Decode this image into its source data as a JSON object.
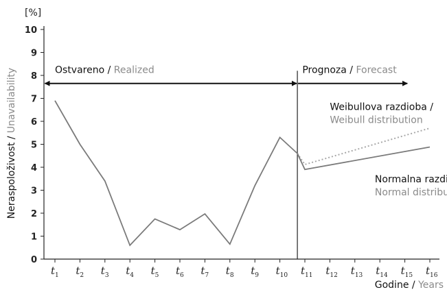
{
  "chart_data": {
    "type": "line",
    "y_unit_label": "[%]",
    "ylabel": {
      "primary": "Neraspoloživost",
      "sep": " / ",
      "secondary": "Unavailability"
    },
    "xlabel": {
      "primary": "Godine",
      "sep": " / ",
      "secondary": "Years"
    },
    "ylim": [
      0,
      10
    ],
    "y_ticks": [
      0,
      1,
      2,
      3,
      4,
      5,
      6,
      7,
      8,
      9,
      10
    ],
    "categories": [
      {
        "base": "t",
        "sub": "1"
      },
      {
        "base": "t",
        "sub": "2"
      },
      {
        "base": "t",
        "sub": "3"
      },
      {
        "base": "t",
        "sub": "4"
      },
      {
        "base": "t",
        "sub": "5"
      },
      {
        "base": "t",
        "sub": "6"
      },
      {
        "base": "t",
        "sub": "7"
      },
      {
        "base": "t",
        "sub": "8"
      },
      {
        "base": "t",
        "sub": "9"
      },
      {
        "base": "t",
        "sub": "10"
      },
      {
        "base": "t",
        "sub": "11"
      },
      {
        "base": "t",
        "sub": "12"
      },
      {
        "base": "t",
        "sub": "13"
      },
      {
        "base": "t",
        "sub": "14"
      },
      {
        "base": "t",
        "sub": "15"
      },
      {
        "base": "t",
        "sub": "16"
      }
    ],
    "series": [
      {
        "id": "realized",
        "style": "solid",
        "color": "#7a7a7a",
        "points": [
          [
            1,
            6.9
          ],
          [
            2,
            5.0
          ],
          [
            3,
            3.4
          ],
          [
            4,
            0.6
          ],
          [
            5,
            1.75
          ],
          [
            6,
            1.28
          ],
          [
            7,
            1.97
          ],
          [
            8,
            0.65
          ],
          [
            9,
            3.2
          ],
          [
            10,
            5.3
          ],
          [
            10.7,
            4.6
          ]
        ]
      },
      {
        "id": "normal",
        "style": "solid",
        "color": "#7a7a7a",
        "points": [
          [
            10.7,
            4.6
          ],
          [
            11,
            3.9
          ],
          [
            16,
            4.88
          ]
        ]
      },
      {
        "id": "weibull",
        "style": "dotted",
        "color": "#a8a8a8",
        "points": [
          [
            10.7,
            4.6
          ],
          [
            11,
            4.12
          ],
          [
            16,
            5.7
          ]
        ]
      }
    ],
    "divider_x": 10.7,
    "arrows": [
      {
        "from": 0.6,
        "to": 10.7,
        "y": 7.65,
        "bidirectional": true
      },
      {
        "from": 10.7,
        "to": 15.1,
        "y": 7.65,
        "bidirectional": false
      }
    ],
    "annotations": {
      "realized": {
        "primary": "Ostvareno",
        "sep": " / ",
        "secondary": "Realized",
        "x": 1.0,
        "y": 8.1
      },
      "forecast": {
        "primary": "Prognoza",
        "sep": " / ",
        "secondary": "Forecast",
        "x": 10.9,
        "y": 8.1
      },
      "weibull": {
        "primary": "Weibullova razdioba /",
        "secondary": "Weibull distribution",
        "x": 12.0,
        "y": 6.5
      },
      "normal": {
        "primary": "Normalna razdioba /",
        "secondary": "Normal distribution",
        "x": 13.8,
        "y": 3.35
      }
    },
    "colors": {
      "axis": "#222222",
      "label_dark": "#111111",
      "label_gray": "#8a8a8a"
    }
  }
}
